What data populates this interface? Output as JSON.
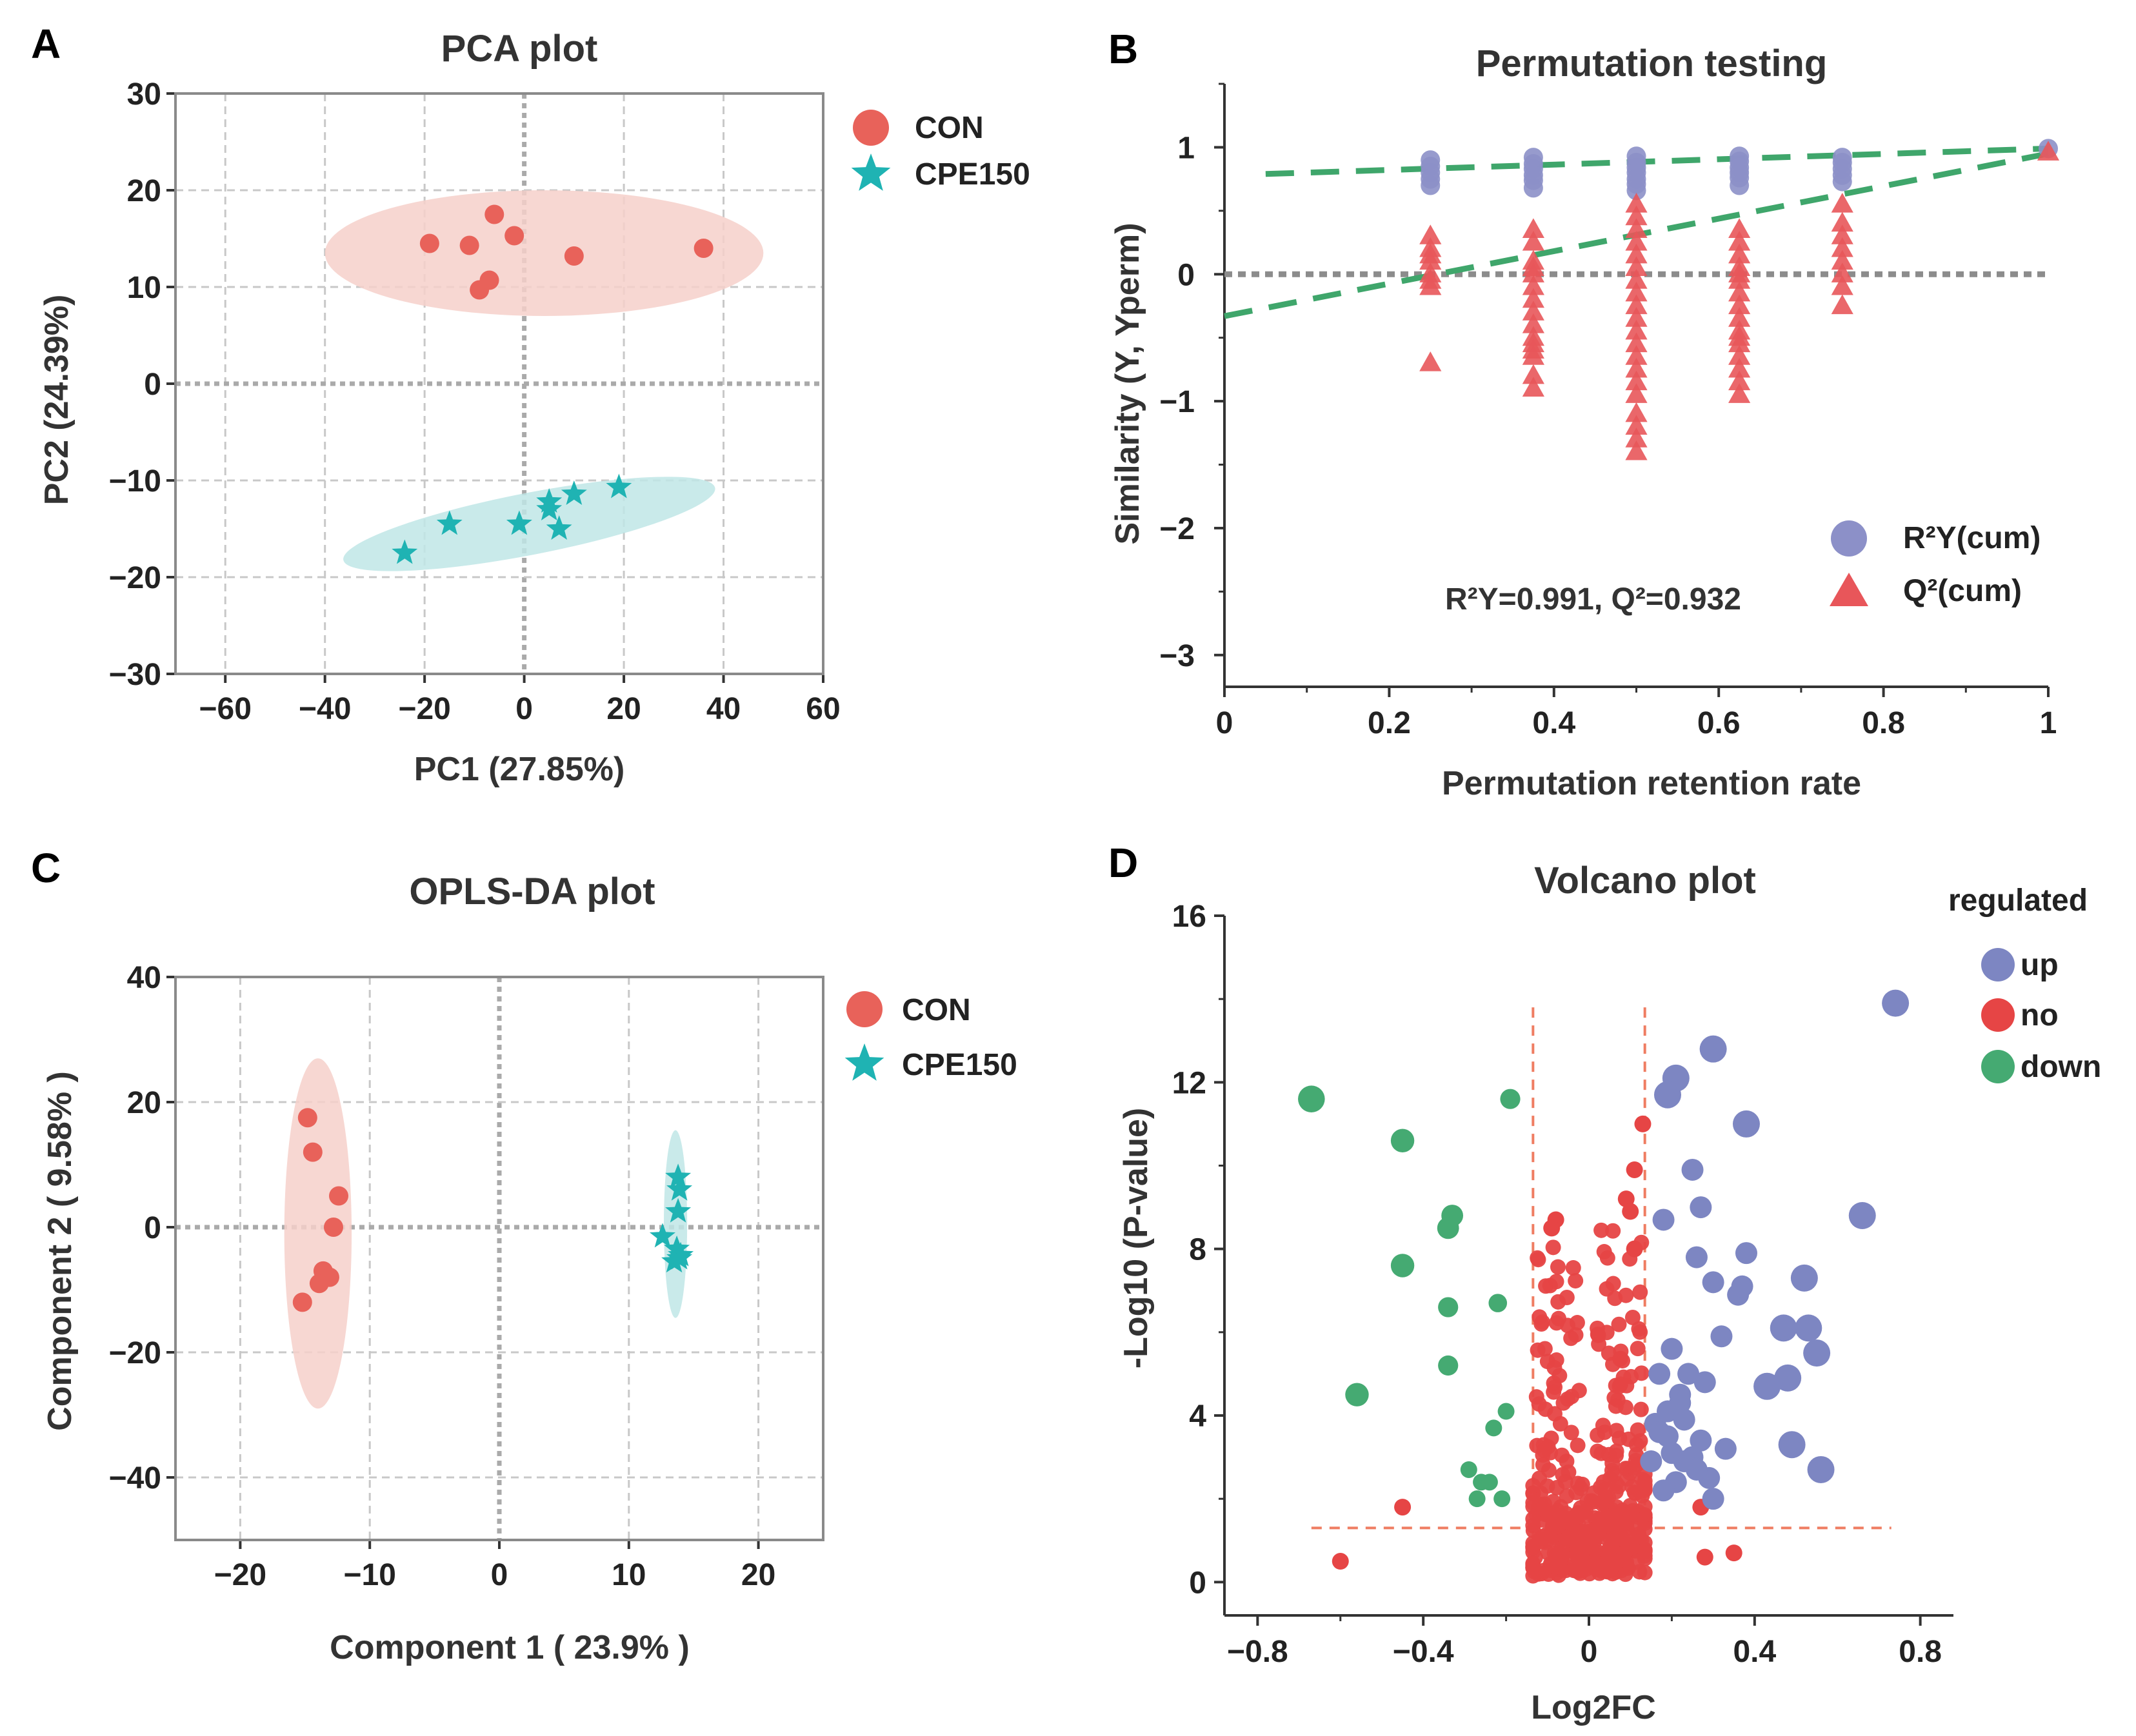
{
  "colors": {
    "con": "#e8625a",
    "con_ellipse": "#f6d0ca",
    "cpe": "#1fb3b3",
    "cpe_ellipse": "#bfe6e6",
    "r2y": "#8c90c8",
    "q2": "#e8565a",
    "perm_line": "#3fa66b",
    "up": "#7d86c2",
    "no": "#e64545",
    "down": "#45aa72",
    "threshold": "#ef7d62",
    "grid": "#c8c8c8",
    "zero": "#aaaaaa"
  },
  "chart_data": [
    {
      "id": "pca",
      "panel_label": "A",
      "type": "scatter",
      "title": "PCA plot",
      "xlabel": "PC1 (27.85%)",
      "ylabel": "PC2 (24.39%)",
      "xlim": [
        -70,
        60
      ],
      "ylim": [
        -30,
        30
      ],
      "xticks": [
        -60,
        -40,
        -20,
        0,
        20,
        40,
        60
      ],
      "yticks": [
        -30,
        -20,
        -10,
        0,
        10,
        20,
        30
      ],
      "tick_labels": {
        "x": [
          "−60",
          "−40",
          "−20",
          "0",
          "20",
          "40",
          "60"
        ],
        "y": [
          "−30",
          "−20",
          "−10",
          "0",
          "10",
          "20",
          "30"
        ]
      },
      "legend": [
        {
          "label": "CON",
          "marker": "circle"
        },
        {
          "label": "CPE150",
          "marker": "star"
        }
      ],
      "series": [
        {
          "name": "CON",
          "marker": "circle",
          "x": [
            -19,
            -11,
            -6,
            -2,
            -9,
            -7,
            10,
            36
          ],
          "y": [
            14.5,
            14.3,
            17.5,
            15.3,
            9.7,
            10.7,
            13.2,
            14
          ]
        },
        {
          "name": "CPE150",
          "marker": "star",
          "x": [
            -24,
            -15,
            -1,
            5,
            5,
            7,
            10,
            19
          ],
          "y": [
            -17.5,
            -14.5,
            -14.5,
            -12.2,
            -13,
            -15,
            -11.4,
            -10.7
          ]
        }
      ],
      "ellipses": [
        {
          "group": "CON",
          "cx": 4,
          "cy": 13.5,
          "rx": 44,
          "ry": 6.5,
          "rotate_deg": 0
        },
        {
          "group": "CPE150",
          "cx": 1,
          "cy": -14.5,
          "rx": 38,
          "ry": 3.2,
          "rotate_deg": 11
        }
      ]
    },
    {
      "id": "permutation",
      "panel_label": "B",
      "type": "scatter",
      "title": "Permutation testing",
      "xlabel": "Permutation retention rate",
      "ylabel": "Similarity (Y, Yperm)",
      "xlim": [
        0,
        1
      ],
      "ylim": [
        -3.25,
        1.5
      ],
      "xticks": [
        0,
        0.2,
        0.4,
        0.6,
        0.8,
        1
      ],
      "yticks": [
        -3,
        -2,
        -1,
        0,
        1
      ],
      "tick_labels": {
        "x": [
          "0",
          "0.2",
          "0.4",
          "0.6",
          "0.8",
          "1"
        ],
        "y": [
          "−3",
          "−2",
          "−1",
          "0",
          "1"
        ]
      },
      "annotation": "R²Y=0.991, Q²=0.932",
      "legend": [
        {
          "label": "R²Y(cum)",
          "marker": "circle"
        },
        {
          "label": "Q²(cum)",
          "marker": "triangle"
        }
      ],
      "r2y_points": {
        "x": [
          0.25,
          0.25,
          0.25,
          0.25,
          0.25,
          0.375,
          0.375,
          0.375,
          0.375,
          0.375,
          0.375,
          0.5,
          0.5,
          0.5,
          0.5,
          0.5,
          0.5,
          0.5,
          0.625,
          0.625,
          0.625,
          0.625,
          0.625,
          0.625,
          0.75,
          0.75,
          0.75,
          0.75,
          0.75,
          1.0
        ],
        "y": [
          0.9,
          0.85,
          0.8,
          0.75,
          0.7,
          0.92,
          0.87,
          0.83,
          0.78,
          0.74,
          0.68,
          0.93,
          0.88,
          0.84,
          0.8,
          0.75,
          0.71,
          0.66,
          0.93,
          0.89,
          0.84,
          0.8,
          0.76,
          0.7,
          0.92,
          0.88,
          0.83,
          0.78,
          0.73,
          0.99
        ]
      },
      "q2_points": {
        "x": [
          0.25,
          0.25,
          0.25,
          0.25,
          0.25,
          0.25,
          0.25,
          0.25,
          0.375,
          0.375,
          0.375,
          0.375,
          0.375,
          0.375,
          0.375,
          0.375,
          0.375,
          0.375,
          0.375,
          0.375,
          0.375,
          0.375,
          0.375,
          0.5,
          0.5,
          0.5,
          0.5,
          0.5,
          0.5,
          0.5,
          0.5,
          0.5,
          0.5,
          0.5,
          0.5,
          0.5,
          0.5,
          0.5,
          0.5,
          0.5,
          0.5,
          0.5,
          0.5,
          0.625,
          0.625,
          0.625,
          0.625,
          0.625,
          0.625,
          0.625,
          0.625,
          0.625,
          0.625,
          0.625,
          0.625,
          0.625,
          0.625,
          0.625,
          0.625,
          0.75,
          0.75,
          0.75,
          0.75,
          0.75,
          0.75,
          0.75,
          0.75,
          1.0
        ],
        "y": [
          0.3,
          0.2,
          0.1,
          0.0,
          -0.05,
          -0.1,
          0.15,
          -0.7,
          0.35,
          0.25,
          0.1,
          0.0,
          -0.1,
          -0.2,
          -0.3,
          -0.4,
          -0.5,
          -0.55,
          -0.6,
          -0.65,
          -0.8,
          -0.9,
          0.05,
          0.55,
          0.45,
          0.35,
          0.25,
          0.15,
          0.05,
          -0.05,
          -0.15,
          -0.25,
          -0.35,
          -0.45,
          -0.55,
          -0.65,
          -0.75,
          -0.85,
          -0.95,
          -1.1,
          -1.2,
          -1.3,
          -1.4,
          0.35,
          0.25,
          0.15,
          0.05,
          -0.05,
          -0.15,
          -0.25,
          -0.35,
          -0.45,
          -0.55,
          -0.65,
          -0.75,
          -0.85,
          -0.95,
          -0.5,
          0.0,
          0.55,
          0.4,
          0.3,
          0.2,
          0.1,
          0.0,
          -0.1,
          -0.25,
          0.96
        ]
      },
      "r2y_line": {
        "x": [
          0.05,
          1.0
        ],
        "y": [
          0.79,
          0.99
        ]
      },
      "q2_line": {
        "x": [
          0.0,
          1.0
        ],
        "y": [
          -0.33,
          0.95
        ]
      }
    },
    {
      "id": "oplsda",
      "panel_label": "C",
      "type": "scatter",
      "title": "OPLS-DA plot",
      "xlabel": "Component 1 ( 23.9% )",
      "ylabel": "Component 2 ( 9.58% )",
      "xlim": [
        -25,
        25
      ],
      "ylim": [
        -50,
        40
      ],
      "xticks": [
        -20,
        -10,
        0,
        10,
        20
      ],
      "yticks": [
        -40,
        -20,
        0,
        20,
        40
      ],
      "tick_labels": {
        "x": [
          "−20",
          "−10",
          "0",
          "10",
          "20"
        ],
        "y": [
          "−40",
          "−20",
          "0",
          "20",
          "40"
        ]
      },
      "legend": [
        {
          "label": "CON",
          "marker": "circle"
        },
        {
          "label": "CPE150",
          "marker": "star"
        }
      ],
      "series": [
        {
          "name": "CON",
          "marker": "circle",
          "x": [
            -14.8,
            -14.4,
            -12.4,
            -12.8,
            -13.6,
            -13.9,
            -13.1,
            -15.2
          ],
          "y": [
            17.5,
            12,
            5,
            0,
            -7,
            -9,
            -8,
            -12
          ]
        },
        {
          "name": "CPE150",
          "marker": "star",
          "x": [
            13.8,
            13.9,
            13.8,
            12.6,
            13.7,
            14.0,
            13.5,
            13.9
          ],
          "y": [
            8,
            6,
            2.5,
            -1.5,
            -3.5,
            -4.5,
            -5.5,
            -5
          ]
        }
      ],
      "ellipses": [
        {
          "group": "CON",
          "cx": -14,
          "cy": -1,
          "rx": 2.6,
          "ry": 28,
          "rotate_deg": 0
        },
        {
          "group": "CPE150",
          "cx": 13.6,
          "cy": 0.5,
          "rx": 0.9,
          "ry": 15,
          "rotate_deg": 0
        }
      ]
    },
    {
      "id": "volcano",
      "panel_label": "D",
      "type": "scatter",
      "title": "Volcano plot",
      "xlabel": "Log2FC",
      "ylabel": "-Log10 (P-value)",
      "xlim": [
        -0.88,
        0.88
      ],
      "ylim": [
        -0.8,
        16
      ],
      "xticks": [
        -0.8,
        -0.4,
        0,
        0.4,
        0.8
      ],
      "yticks": [
        0,
        4,
        8,
        12,
        16
      ],
      "tick_labels": {
        "x": [
          "−0.8",
          "−0.4",
          "0",
          "0.4",
          "0.8"
        ],
        "y": [
          "0",
          "4",
          "8",
          "12",
          "16"
        ]
      },
      "legend_title": "regulated",
      "legend": [
        {
          "label": "up"
        },
        {
          "label": "no"
        },
        {
          "label": "down"
        }
      ],
      "thresholds": {
        "fc": 0.135,
        "p": 1.3
      },
      "up": {
        "x": [
          0.74,
          0.66,
          0.38,
          0.3,
          0.21,
          0.19,
          0.25,
          0.27,
          0.38,
          0.18,
          0.26,
          0.3,
          0.36,
          0.37,
          0.52,
          0.53,
          0.48,
          0.55,
          0.43,
          0.49,
          0.47,
          0.56,
          0.2,
          0.24,
          0.28,
          0.22,
          0.32,
          0.19,
          0.22,
          0.27,
          0.33,
          0.16,
          0.25,
          0.17,
          0.2,
          0.23,
          0.29,
          0.21,
          0.18,
          0.15,
          0.19,
          0.26,
          0.3,
          0.17,
          0.23
        ],
        "y": [
          13.9,
          8.8,
          11,
          12.8,
          12.1,
          11.7,
          9.9,
          9,
          7.9,
          8.7,
          7.8,
          7.2,
          6.9,
          7.1,
          7.3,
          6.1,
          4.9,
          5.5,
          4.7,
          3.3,
          6.1,
          2.7,
          5.6,
          5.0,
          4.8,
          4.5,
          5.9,
          4.1,
          4.3,
          3.4,
          3.2,
          3.8,
          3.0,
          3.6,
          3.1,
          2.9,
          2.5,
          2.4,
          2.2,
          2.9,
          3.5,
          2.7,
          2.0,
          5.0,
          3.9
        ]
      },
      "down": {
        "x": [
          -0.67,
          -0.45,
          -0.19,
          -0.33,
          -0.34,
          -0.45,
          -0.34,
          -0.22,
          -0.34,
          -0.56,
          -0.2,
          -0.23,
          -0.29,
          -0.26,
          -0.24,
          -0.27,
          -0.21
        ],
        "y": [
          11.6,
          10.6,
          11.6,
          8.8,
          8.5,
          7.6,
          6.6,
          6.7,
          5.2,
          4.5,
          4.1,
          3.7,
          2.7,
          2.4,
          2.4,
          2.0,
          2.0
        ],
        "size": [
          1.6,
          1.4,
          1.2,
          1.3,
          1.3,
          1.4,
          1.2,
          1.1,
          1.2,
          1.4,
          1.0,
          1.0,
          1.0,
          1.0,
          1.0,
          1.0,
          1.0
        ]
      },
      "no_highlight": {
        "x": [
          0.13,
          0.11,
          0.09,
          -0.08,
          -0.09,
          0.1,
          0.11,
          -0.45,
          -0.6,
          0.35,
          0.27,
          0.28
        ],
        "y": [
          11,
          9.9,
          9.2,
          8.7,
          8.5,
          8.9,
          8.0,
          1.8,
          0.5,
          0.7,
          1.8,
          0.6
        ]
      },
      "no_count": 420
    }
  ]
}
